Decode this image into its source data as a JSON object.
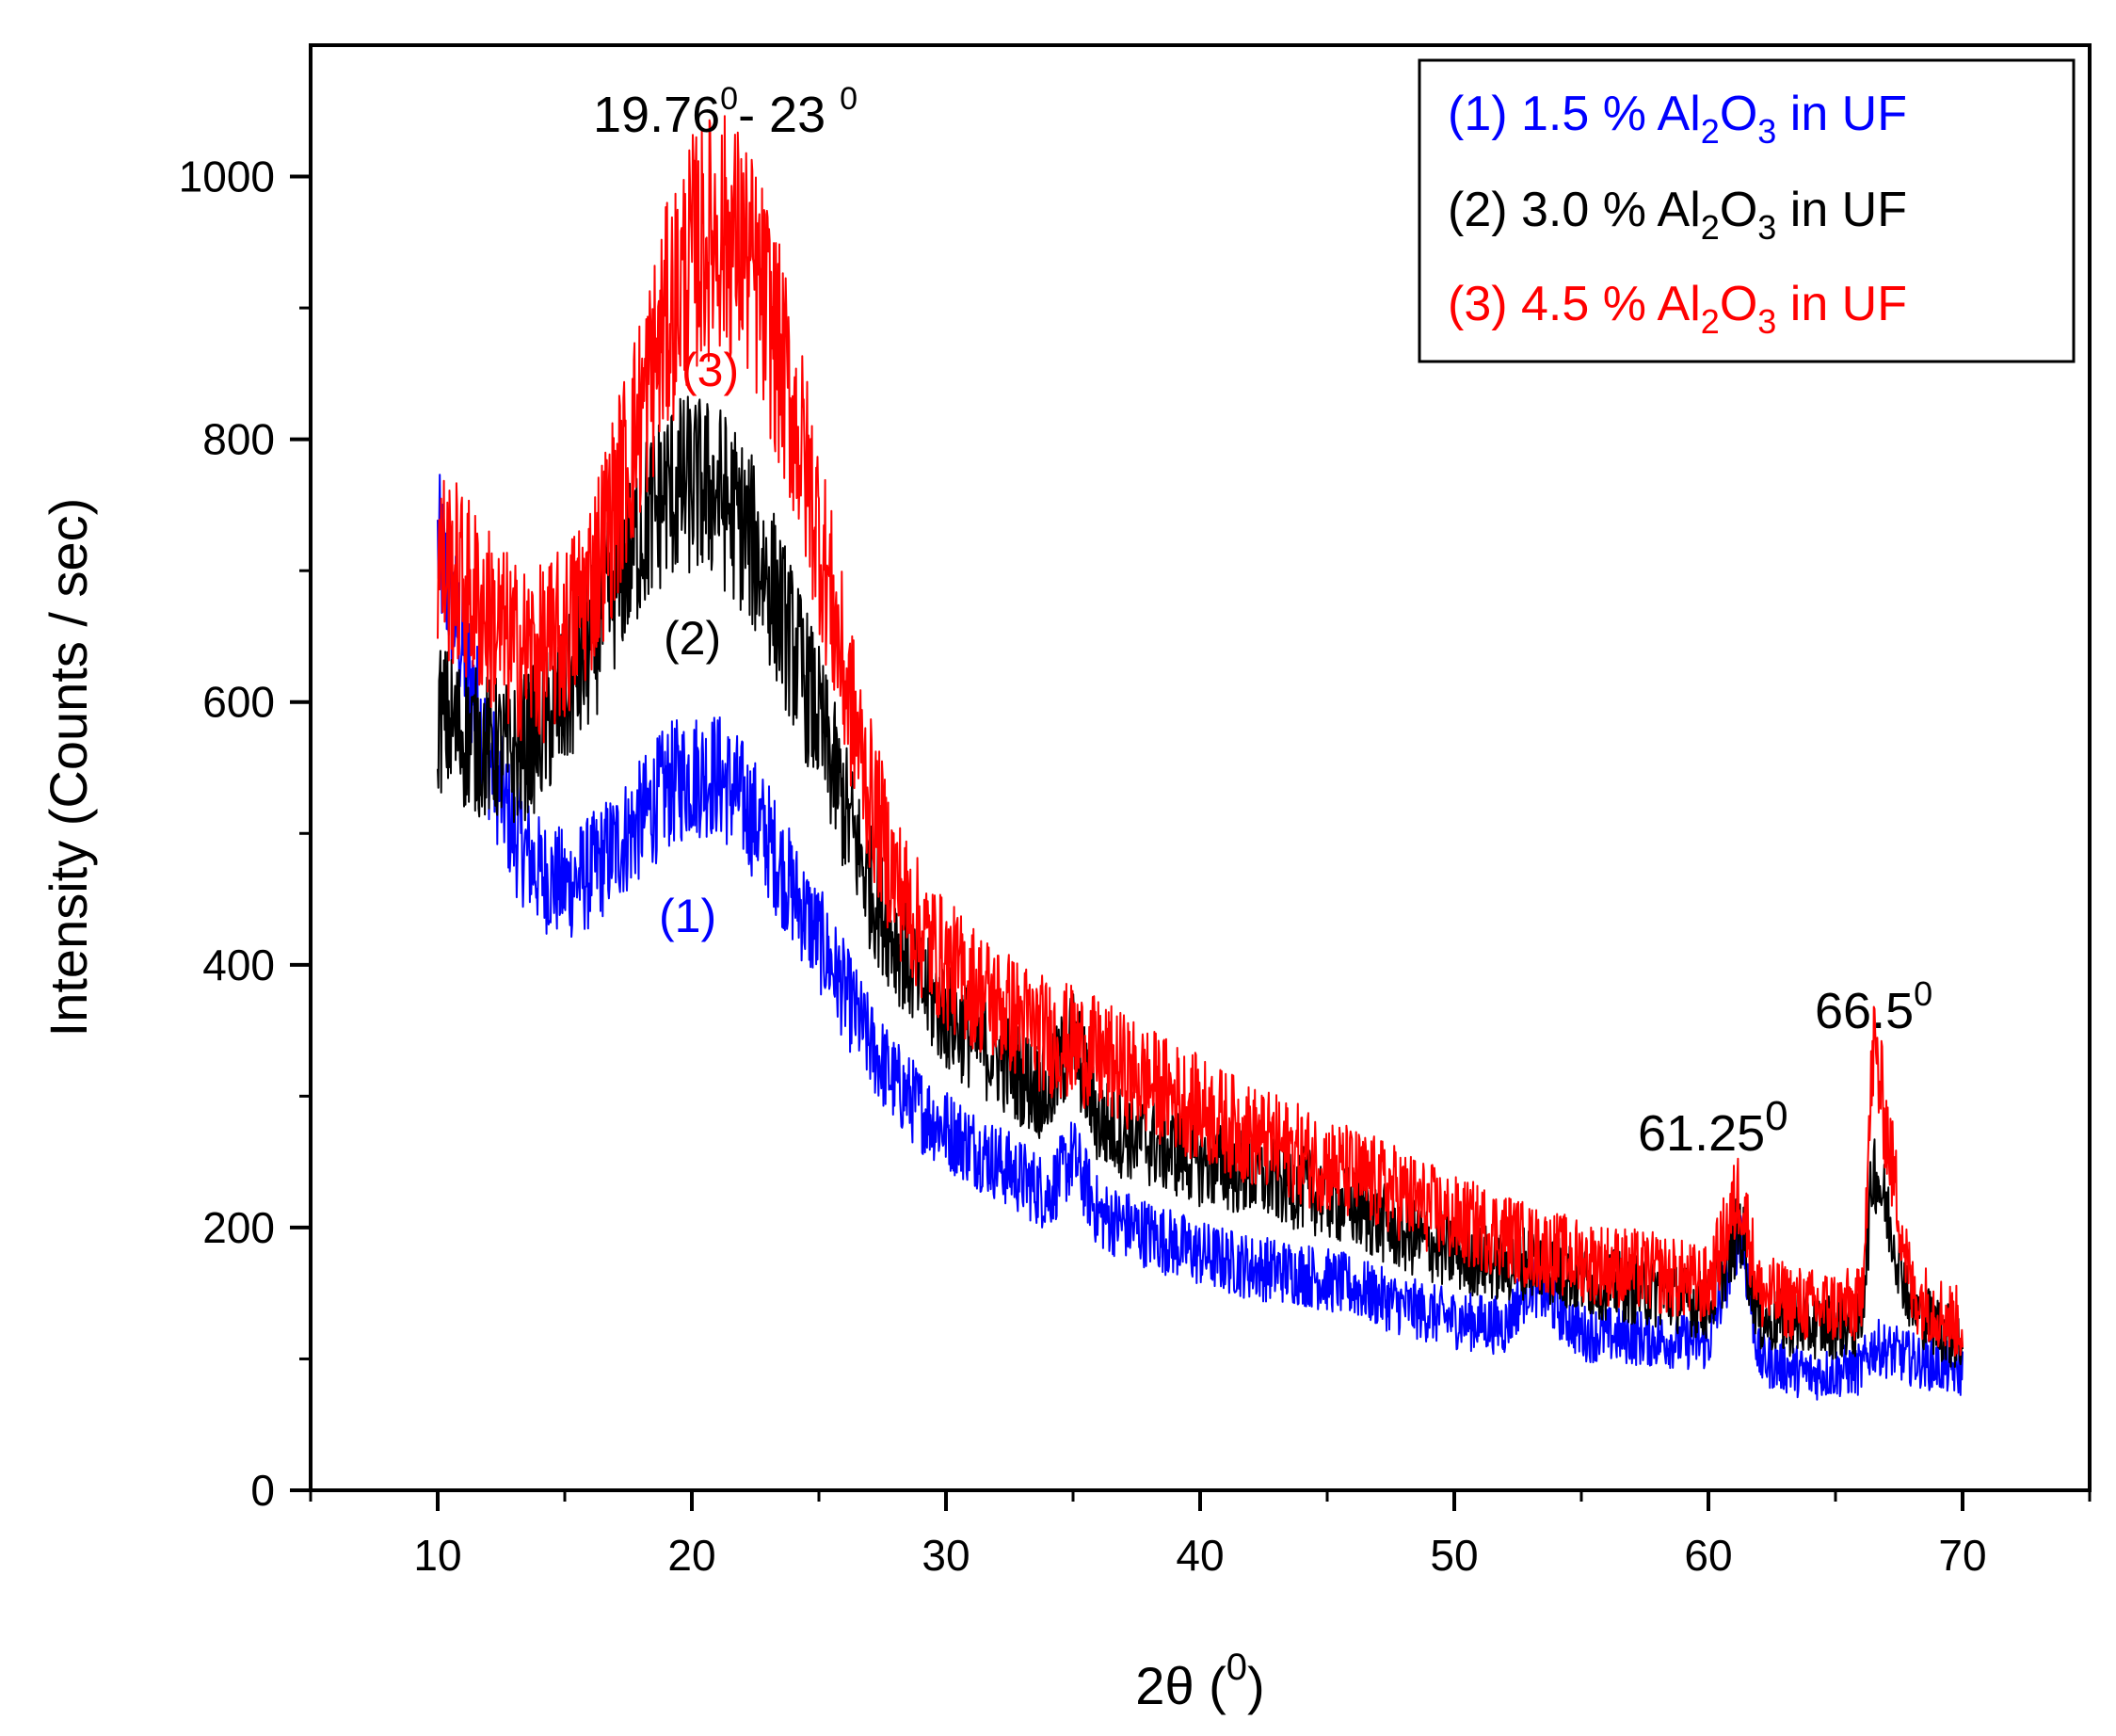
{
  "chart_data": {
    "type": "line",
    "xlabel": "2θ (⁰)",
    "xlabel_main": "2θ (",
    "xlabel_sup": "0",
    "xlabel_end": ")",
    "ylabel": "Intensity (Counts / sec)",
    "xlim": [
      5,
      75
    ],
    "ylim": [
      0,
      1100
    ],
    "x_ticks": [
      10,
      20,
      30,
      40,
      50,
      60,
      70
    ],
    "y_ticks": [
      0,
      200,
      400,
      600,
      800,
      1000
    ],
    "x_tick_labels": [
      "10",
      "20",
      "30",
      "40",
      "50",
      "60",
      "70"
    ],
    "y_tick_labels": [
      "0",
      "200",
      "400",
      "600",
      "800",
      "1000"
    ],
    "grid": false,
    "legend_position": "top-right",
    "series": [
      {
        "name": "(1) 1.5 % Al2O3 in UF",
        "legend_prefix": "(1) 1.5 % Al",
        "curve_label": "(1)",
        "color": "#0000ff",
        "x": [
          10,
          11,
          12,
          13,
          14,
          15,
          16,
          17,
          18,
          19,
          20,
          21,
          22,
          23,
          24,
          25,
          26,
          27,
          28,
          29,
          30,
          32,
          34,
          35,
          36,
          38,
          40,
          42,
          44,
          46,
          48,
          50,
          52,
          53,
          55,
          58,
          60,
          61.25,
          62,
          64,
          66,
          66.5,
          68,
          70
        ],
        "y": [
          720,
          640,
          560,
          500,
          470,
          460,
          470,
          490,
          510,
          535,
          545,
          545,
          525,
          495,
          455,
          420,
          380,
          340,
          310,
          290,
          275,
          250,
          225,
          255,
          210,
          195,
          180,
          170,
          165,
          155,
          140,
          130,
          125,
          160,
          120,
          115,
          112,
          200,
          100,
          88,
          92,
          110,
          100,
          90
        ],
        "noise": 32
      },
      {
        "name": "(2) 3.0 % Al2O3 in UF",
        "legend_prefix": "(2) 3.0 % Al",
        "curve_label": "(2)",
        "color": "#000000",
        "x": [
          10,
          11,
          12,
          13,
          14,
          15,
          16,
          17,
          18,
          19,
          20,
          21,
          22,
          23,
          24,
          25,
          26,
          27,
          28,
          29,
          30,
          32,
          34,
          35,
          36,
          38,
          40,
          42,
          44,
          46,
          48,
          50,
          52,
          53,
          55,
          58,
          60,
          61.25,
          62,
          64,
          66,
          66.5,
          68,
          70
        ],
        "y": [
          590,
          575,
          565,
          560,
          575,
          600,
          640,
          690,
          730,
          760,
          765,
          760,
          735,
          695,
          640,
          585,
          520,
          460,
          420,
          385,
          360,
          330,
          300,
          345,
          280,
          265,
          250,
          240,
          230,
          215,
          195,
          180,
          170,
          175,
          160,
          150,
          140,
          200,
          130,
          125,
          125,
          250,
          140,
          110
        ],
        "noise": 36
      },
      {
        "name": "(3) 4.5 % Al2O3 in UF",
        "legend_prefix": "(3) 4.5 % Al",
        "curve_label": "(3)",
        "color": "#ff0000",
        "x": [
          10,
          11,
          12,
          13,
          14,
          15,
          16,
          17,
          18,
          19,
          20,
          21,
          22,
          23,
          24,
          25,
          26,
          27,
          28,
          29,
          30,
          32,
          34,
          35,
          36,
          38,
          40,
          42,
          44,
          46,
          48,
          50,
          52,
          53,
          55,
          58,
          60,
          61.25,
          62,
          64,
          66,
          66.5,
          68,
          70
        ],
        "y": [
          710,
          690,
          665,
          640,
          635,
          650,
          690,
          750,
          820,
          890,
          940,
          960,
          945,
          895,
          820,
          730,
          620,
          530,
          465,
          425,
          400,
          370,
          345,
          340,
          330,
          310,
          290,
          270,
          255,
          240,
          225,
          205,
          195,
          185,
          175,
          165,
          155,
          230,
          150,
          140,
          140,
          340,
          150,
          125
        ],
        "noise": 40
      }
    ],
    "legend_sub2": "2",
    "legend_mid": "O",
    "legend_sub3": "3",
    "legend_suffix": " in UF",
    "annotations": [
      {
        "id": "peak-main",
        "main": "19.76",
        "sup": "0",
        "rest": "- 23 ",
        "sup2": "0"
      },
      {
        "id": "peak-6125",
        "main": "61.25",
        "sup": "0"
      },
      {
        "id": "peak-665",
        "main": "66.5",
        "sup": "0"
      }
    ]
  }
}
